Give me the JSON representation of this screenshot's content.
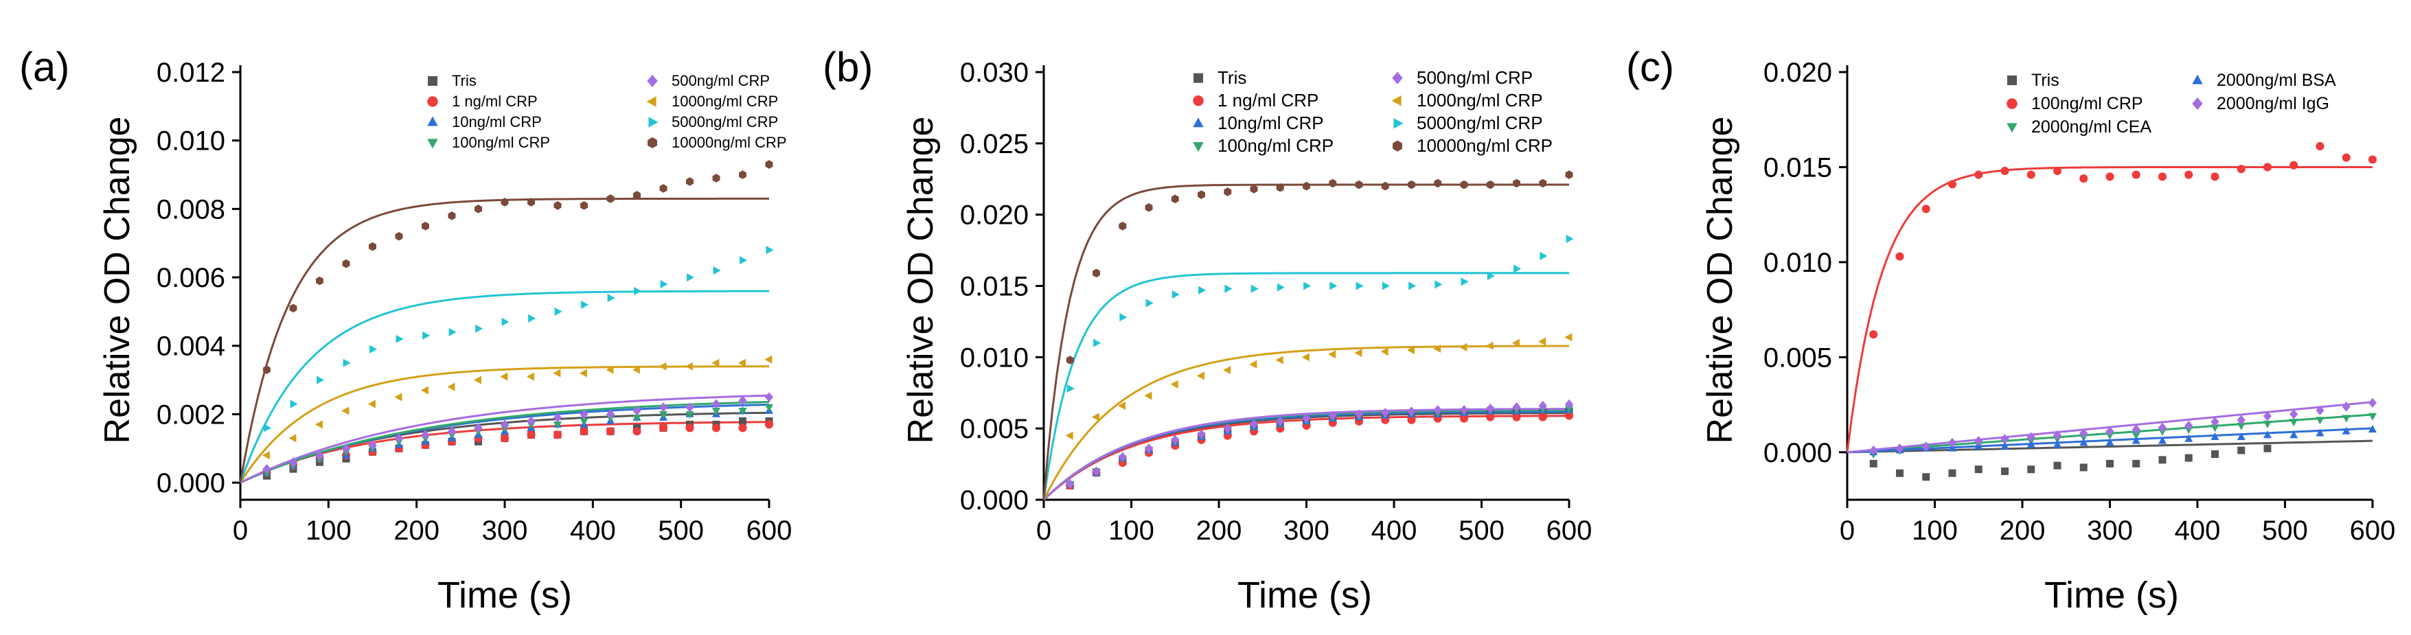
{
  "figure": {
    "panels": [
      "(a)",
      "(b)",
      "(c)"
    ]
  },
  "chart_data": [
    {
      "type": "scatter",
      "panel_label": "(a)",
      "title": "",
      "xlabel": "Time (s)",
      "ylabel": "Relative OD Change",
      "xlim": [
        0,
        600
      ],
      "ylim": [
        -0.0005,
        0.012
      ],
      "xticks": [
        0,
        100,
        200,
        300,
        400,
        500,
        600
      ],
      "xtick_labels": [
        "0",
        "100",
        "200",
        "300",
        "400",
        "500",
        "600"
      ],
      "yticks": [
        0,
        0.002,
        0.004,
        0.006,
        0.008,
        0.01,
        0.012
      ],
      "ytick_labels": [
        "0.000",
        "0.002",
        "0.004",
        "0.006",
        "0.008",
        "0.010",
        "0.012"
      ],
      "legend_position": "top-right",
      "legend_columns": 2,
      "x": [
        30,
        60,
        90,
        120,
        150,
        180,
        210,
        240,
        270,
        300,
        330,
        360,
        390,
        420,
        450,
        480,
        510,
        540,
        570,
        600
      ],
      "series": [
        {
          "name": "Tris",
          "marker": "square",
          "color": "#555555",
          "fit_plateau": 0.0021,
          "fit_k": 0.006,
          "values": [
            0.0002,
            0.0004,
            0.0006,
            0.0007,
            0.0009,
            0.001,
            0.0011,
            0.0012,
            0.0012,
            0.0013,
            0.0014,
            0.0014,
            0.0015,
            0.0015,
            0.0016,
            0.0016,
            0.0017,
            0.0017,
            0.0018,
            0.0018
          ]
        },
        {
          "name": "1 ng/ml  CRP",
          "marker": "circle",
          "color": "#ee3b3b",
          "fit_plateau": 0.0018,
          "fit_k": 0.007,
          "values": [
            0.0003,
            0.0005,
            0.0007,
            0.0008,
            0.0009,
            0.001,
            0.0011,
            0.0012,
            0.0013,
            0.0013,
            0.0014,
            0.0014,
            0.0015,
            0.0015,
            0.0015,
            0.0016,
            0.0016,
            0.0016,
            0.0016,
            0.0017
          ]
        },
        {
          "name": "10ng/ml  CRP",
          "marker": "triangle-up",
          "color": "#2e6fd6",
          "fit_plateau": 0.0024,
          "fit_k": 0.005,
          "values": [
            0.0003,
            0.0005,
            0.0007,
            0.0008,
            0.001,
            0.0011,
            0.0012,
            0.0013,
            0.0014,
            0.0015,
            0.0016,
            0.0017,
            0.0017,
            0.0018,
            0.0019,
            0.0019,
            0.002,
            0.002,
            0.0021,
            0.0021
          ]
        },
        {
          "name": "100ng/ml CRP",
          "marker": "triangle-down",
          "color": "#2fa86a",
          "fit_plateau": 0.0025,
          "fit_k": 0.0048,
          "values": [
            0.0003,
            0.0005,
            0.0007,
            0.0009,
            0.001,
            0.0012,
            0.0013,
            0.0014,
            0.0015,
            0.0016,
            0.0017,
            0.0017,
            0.0018,
            0.0019,
            0.0019,
            0.002,
            0.002,
            0.0021,
            0.0021,
            0.0022
          ]
        },
        {
          "name": "500ng/ml CRP",
          "marker": "diamond",
          "color": "#a56de2",
          "fit_plateau": 0.0027,
          "fit_k": 0.0048,
          "values": [
            0.0004,
            0.0006,
            0.0008,
            0.001,
            0.0011,
            0.0013,
            0.0014,
            0.0015,
            0.0016,
            0.0017,
            0.0018,
            0.0019,
            0.002,
            0.002,
            0.0021,
            0.0022,
            0.0022,
            0.0023,
            0.0024,
            0.0025
          ]
        },
        {
          "name": "1000ng/ml CRP",
          "marker": "triangle-left",
          "color": "#d4a017",
          "fit_plateau": 0.0034,
          "fit_k": 0.012,
          "values": [
            0.0008,
            0.0013,
            0.0017,
            0.0021,
            0.0023,
            0.0025,
            0.0027,
            0.0028,
            0.003,
            0.0031,
            0.0031,
            0.0032,
            0.0032,
            0.0033,
            0.0033,
            0.0034,
            0.0034,
            0.0035,
            0.0035,
            0.0036
          ]
        },
        {
          "name": "5000ng/ml CRP",
          "marker": "triangle-right",
          "color": "#22c4d4",
          "fit_plateau": 0.0056,
          "fit_k": 0.013,
          "values": [
            0.0016,
            0.0023,
            0.003,
            0.0035,
            0.0039,
            0.0042,
            0.0043,
            0.0044,
            0.0045,
            0.0047,
            0.0048,
            0.005,
            0.0052,
            0.0054,
            0.0056,
            0.0058,
            0.006,
            0.0062,
            0.0065,
            0.0068
          ]
        },
        {
          "name": "10000ng/ml CRP",
          "marker": "hexagon",
          "color": "#7b4a3a",
          "fit_plateau": 0.0083,
          "fit_k": 0.018,
          "values": [
            0.0033,
            0.0051,
            0.0059,
            0.0064,
            0.0069,
            0.0072,
            0.0075,
            0.0078,
            0.008,
            0.0082,
            0.0082,
            0.0081,
            0.0081,
            0.0083,
            0.0084,
            0.0086,
            0.0088,
            0.0089,
            0.009,
            0.0093
          ]
        }
      ]
    },
    {
      "type": "scatter",
      "panel_label": "(b)",
      "title": "",
      "xlabel": "Time (s)",
      "ylabel": "Relative OD Change",
      "xlim": [
        0,
        600
      ],
      "ylim": [
        0,
        0.03
      ],
      "xticks": [
        0,
        100,
        200,
        300,
        400,
        500,
        600
      ],
      "xtick_labels": [
        "0",
        "100",
        "200",
        "300",
        "400",
        "500",
        "600"
      ],
      "yticks": [
        0,
        0.005,
        0.01,
        0.015,
        0.02,
        0.025,
        0.03
      ],
      "ytick_labels": [
        "0.000",
        "0.005",
        "0.010",
        "0.015",
        "0.020",
        "0.025",
        "0.030"
      ],
      "legend_position": "top-right",
      "legend_columns": 2,
      "x": [
        30,
        60,
        90,
        120,
        150,
        180,
        210,
        240,
        270,
        300,
        330,
        360,
        390,
        420,
        450,
        480,
        510,
        540,
        570,
        600
      ],
      "series": [
        {
          "name": "Tris",
          "marker": "square",
          "color": "#555555",
          "fit_plateau": 0.0061,
          "fit_k": 0.0098,
          "values": [
            0.001,
            0.0019,
            0.0027,
            0.0034,
            0.0039,
            0.0043,
            0.0047,
            0.0051,
            0.0052,
            0.0054,
            0.0056,
            0.0057,
            0.0058,
            0.0059,
            0.0059,
            0.006,
            0.006,
            0.0061,
            0.0061,
            0.0062
          ]
        },
        {
          "name": "1 ng/ml  CRP",
          "marker": "circle",
          "color": "#ee3b3b",
          "fit_plateau": 0.0059,
          "fit_k": 0.01,
          "values": [
            0.001,
            0.0019,
            0.0026,
            0.0033,
            0.0038,
            0.0042,
            0.0045,
            0.0048,
            0.005,
            0.0052,
            0.0054,
            0.0055,
            0.0056,
            0.0056,
            0.0057,
            0.0057,
            0.0058,
            0.0058,
            0.0058,
            0.0059
          ]
        },
        {
          "name": "10ng/ml  CRP",
          "marker": "triangle-up",
          "color": "#2e6fd6",
          "fit_plateau": 0.0062,
          "fit_k": 0.0098,
          "values": [
            0.0011,
            0.0019,
            0.0029,
            0.0035,
            0.004,
            0.0044,
            0.0048,
            0.0051,
            0.0053,
            0.0055,
            0.0057,
            0.0058,
            0.0059,
            0.006,
            0.006,
            0.0061,
            0.0062,
            0.0062,
            0.0063,
            0.0063
          ]
        },
        {
          "name": "100ng/ml CRP",
          "marker": "triangle-down",
          "color": "#2fa86a",
          "fit_plateau": 0.0063,
          "fit_k": 0.0098,
          "values": [
            0.0011,
            0.002,
            0.0029,
            0.0035,
            0.0041,
            0.0045,
            0.0049,
            0.0052,
            0.0054,
            0.0056,
            0.0058,
            0.0059,
            0.006,
            0.0061,
            0.0061,
            0.0062,
            0.0063,
            0.0063,
            0.0064,
            0.0064
          ]
        },
        {
          "name": "500ng/ml CRP",
          "marker": "diamond",
          "color": "#a56de2",
          "fit_plateau": 0.0064,
          "fit_k": 0.0095,
          "values": [
            0.0011,
            0.002,
            0.003,
            0.0036,
            0.0042,
            0.0046,
            0.005,
            0.0053,
            0.0055,
            0.0057,
            0.0059,
            0.006,
            0.0061,
            0.0062,
            0.0063,
            0.0063,
            0.0064,
            0.0065,
            0.0066,
            0.0067
          ]
        },
        {
          "name": "1000ng/ml CRP",
          "marker": "triangle-left",
          "color": "#d4a017",
          "fit_plateau": 0.0108,
          "fit_k": 0.0115,
          "values": [
            0.0045,
            0.0058,
            0.0066,
            0.0073,
            0.0081,
            0.0087,
            0.0091,
            0.0095,
            0.0098,
            0.01,
            0.0102,
            0.0103,
            0.0104,
            0.0105,
            0.0106,
            0.0107,
            0.0108,
            0.011,
            0.0111,
            0.0114
          ]
        },
        {
          "name": "5000ng/ml CRP",
          "marker": "triangle-right",
          "color": "#22c4d4",
          "fit_plateau": 0.0159,
          "fit_k": 0.028,
          "values": [
            0.0078,
            0.011,
            0.0128,
            0.0138,
            0.0144,
            0.0147,
            0.0148,
            0.0148,
            0.0149,
            0.015,
            0.015,
            0.015,
            0.015,
            0.015,
            0.0151,
            0.0153,
            0.0157,
            0.0162,
            0.0171,
            0.0183
          ]
        },
        {
          "name": "10000ng/ml CRP",
          "marker": "hexagon",
          "color": "#7b4a3a",
          "fit_plateau": 0.0221,
          "fit_k": 0.034,
          "values": [
            0.0098,
            0.0159,
            0.0192,
            0.0205,
            0.0211,
            0.0214,
            0.0216,
            0.0218,
            0.0219,
            0.022,
            0.0222,
            0.0221,
            0.022,
            0.0221,
            0.0222,
            0.0221,
            0.0221,
            0.0222,
            0.0222,
            0.0228
          ]
        }
      ]
    },
    {
      "type": "scatter",
      "panel_label": "(c)",
      "title": "",
      "xlabel": "Time (s)",
      "ylabel": "Relative OD Change",
      "xlim": [
        0,
        600
      ],
      "ylim": [
        -0.0025,
        0.02
      ],
      "xticks": [
        0,
        100,
        200,
        300,
        400,
        500,
        600
      ],
      "xtick_labels": [
        "0",
        "100",
        "200",
        "300",
        "400",
        "500",
        "600"
      ],
      "yticks": [
        0,
        0.005,
        0.01,
        0.015,
        0.02
      ],
      "ytick_labels": [
        "0.000",
        "0.005",
        "0.010",
        "0.015",
        "0.020"
      ],
      "legend_position": "top-right",
      "legend_columns": 2,
      "x": [
        30,
        60,
        90,
        120,
        150,
        180,
        210,
        240,
        270,
        300,
        330,
        360,
        390,
        420,
        450,
        480,
        510,
        540,
        570,
        600
      ],
      "series": [
        {
          "name": "Tris",
          "marker": "square",
          "color": "#555555",
          "fit_slope": 1e-06,
          "values": [
            -0.0006,
            -0.0011,
            -0.0013,
            -0.0011,
            -0.0009,
            -0.001,
            -0.0009,
            -0.0007,
            -0.0008,
            -0.0006,
            -0.0006,
            -0.0004,
            -0.0003,
            -0.0001,
            0.0001,
            0.0002,
            null,
            null,
            null,
            null
          ]
        },
        {
          "name": "100ng/ml CRP",
          "marker": "circle",
          "color": "#ee3b3b",
          "fit_plateau": 0.015,
          "fit_k": 0.025,
          "values": [
            0.0062,
            0.0103,
            0.0128,
            0.0141,
            0.0146,
            0.0148,
            0.0146,
            0.0148,
            0.0144,
            0.0145,
            0.0146,
            0.0145,
            0.0146,
            0.0145,
            0.0149,
            0.015,
            0.0151,
            0.0161,
            0.0155,
            0.0154
          ]
        },
        {
          "name": "2000ng/ml CEA",
          "marker": "triangle-down",
          "color": "#2fa86a",
          "fit_slope": 3.3e-06,
          "values": [
            -0.0001,
            0.0001,
            0.0003,
            0.0004,
            0.0004,
            0.0006,
            0.0006,
            0.0007,
            0.0008,
            0.0009,
            0.0009,
            0.0011,
            0.0012,
            0.0013,
            0.0014,
            0.0015,
            0.0016,
            0.0017,
            0.0018,
            0.0019
          ]
        },
        {
          "name": "2000ng/ml BSA",
          "marker": "triangle-up",
          "color": "#2e6fd6",
          "fit_slope": 2.1e-06,
          "values": [
            0.0,
            0.0001,
            0.0002,
            0.0002,
            0.0003,
            0.0003,
            0.0004,
            0.0004,
            0.0005,
            0.0005,
            0.0006,
            0.0006,
            0.0007,
            0.0008,
            0.0008,
            0.0009,
            0.0009,
            0.001,
            0.0011,
            0.0012
          ]
        },
        {
          "name": "2000ng/ml IgG",
          "marker": "diamond",
          "color": "#a56de2",
          "fit_slope": 4.4e-06,
          "values": [
            0.0001,
            0.0002,
            0.0003,
            0.0005,
            0.0006,
            0.0007,
            0.0008,
            0.0009,
            0.001,
            0.0011,
            0.0012,
            0.0013,
            0.0014,
            0.0016,
            0.0017,
            0.0019,
            0.002,
            0.0022,
            0.0024,
            0.0026
          ]
        }
      ]
    }
  ]
}
